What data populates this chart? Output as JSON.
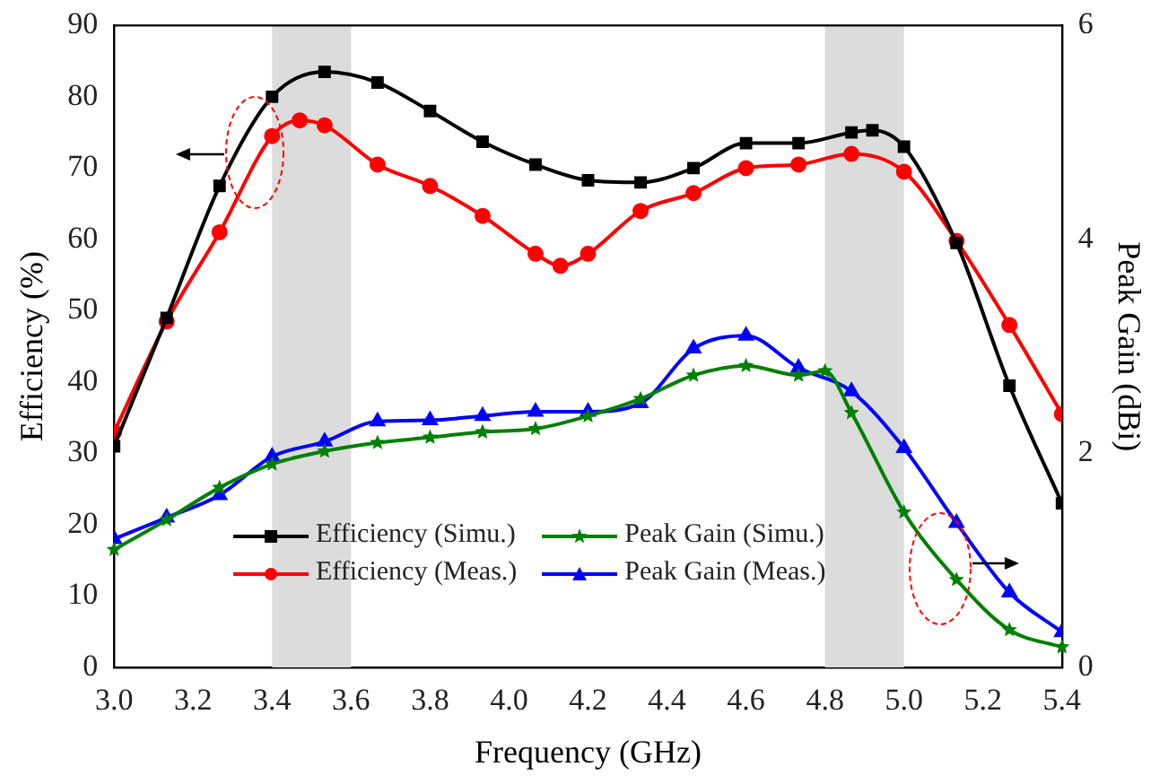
{
  "chart_data": {
    "type": "line",
    "xlabel": "Frequency (GHz)",
    "ylabel": "Efficiency (%)",
    "y2label": "Peak Gain (dBi)",
    "xlim": [
      3.0,
      5.4
    ],
    "xticks": [
      {
        "value": 3.0,
        "label": "3.0"
      },
      {
        "value": 3.2,
        "label": "3.2"
      },
      {
        "value": 3.4,
        "label": "3.4"
      },
      {
        "value": 3.6,
        "label": "3.6"
      },
      {
        "value": 3.8,
        "label": "3.8"
      },
      {
        "value": 4.0,
        "label": "4.0"
      },
      {
        "value": 4.2,
        "label": "4.2"
      },
      {
        "value": 4.4,
        "label": "4.4"
      },
      {
        "value": 4.6,
        "label": "4.6"
      },
      {
        "value": 4.8,
        "label": "4.8"
      },
      {
        "value": 5.0,
        "label": "5.0"
      },
      {
        "value": 5.2,
        "label": "5.2"
      },
      {
        "value": 5.4,
        "label": "5.4"
      }
    ],
    "ylim": [
      0,
      90
    ],
    "yticks": [
      0,
      10,
      20,
      30,
      40,
      50,
      60,
      70,
      80,
      90
    ],
    "y2lim": [
      0,
      6
    ],
    "y2ticks": [
      0,
      2,
      4,
      6
    ],
    "grid": false,
    "legend": "bottom",
    "line_style": "solid",
    "bands": [
      {
        "axis": "x",
        "from": 3.4,
        "to": 3.6,
        "color": "#dcdcdc"
      },
      {
        "axis": "x",
        "from": 4.8,
        "to": 5.0,
        "color": "#dcdcdc"
      }
    ],
    "series": [
      {
        "name": "Efficiency (Simu.)",
        "color": "#000000",
        "marker": "square",
        "x": [
          3.0,
          3.133,
          3.267,
          3.4,
          3.533,
          3.667,
          3.8,
          3.933,
          4.067,
          4.2,
          4.333,
          4.467,
          4.6,
          4.733,
          4.867,
          4.92,
          5.0,
          5.133,
          5.267,
          5.4
        ],
        "values": [
          31,
          49,
          67.5,
          80,
          83.5,
          82,
          78,
          73.7,
          70.5,
          68.3,
          68,
          70,
          73.5,
          73.5,
          75,
          75.3,
          73,
          59.5,
          39.5,
          23
        ]
      },
      {
        "name": "Efficiency (Meas.)",
        "color": "#ff0000",
        "marker": "circle",
        "x": [
          3.0,
          3.133,
          3.267,
          3.4,
          3.47,
          3.533,
          3.667,
          3.8,
          3.933,
          4.067,
          4.13,
          4.2,
          4.333,
          4.467,
          4.6,
          4.733,
          4.867,
          5.0,
          5.133,
          5.267,
          5.4
        ],
        "values": [
          33,
          48.5,
          61,
          74.5,
          76.7,
          76,
          70.5,
          67.5,
          63.3,
          58,
          56.3,
          58,
          64,
          66.5,
          70,
          70.5,
          72,
          69.5,
          59.8,
          48,
          35.5
        ]
      },
      {
        "name": "Peak Gain (Simu.)",
        "color": "#008000",
        "marker": "star",
        "axis": "y2",
        "x": [
          3.0,
          3.133,
          3.267,
          3.4,
          3.533,
          3.667,
          3.8,
          3.933,
          4.067,
          4.2,
          4.333,
          4.467,
          4.6,
          4.733,
          4.8,
          4.867,
          5.0,
          5.133,
          5.267,
          5.4
        ],
        "values": [
          1.1,
          1.38,
          1.68,
          1.9,
          2.02,
          2.1,
          2.15,
          2.2,
          2.23,
          2.35,
          2.51,
          2.73,
          2.82,
          2.73,
          2.77,
          2.38,
          1.45,
          0.82,
          0.35,
          0.19
        ]
      },
      {
        "name": "Peak Gain (Meas.)",
        "color": "#0000ff",
        "marker": "triangle",
        "axis": "y2",
        "x": [
          3.0,
          3.133,
          3.267,
          3.4,
          3.533,
          3.667,
          3.8,
          3.933,
          4.067,
          4.2,
          4.333,
          4.467,
          4.6,
          4.733,
          4.867,
          5.0,
          5.133,
          5.267,
          5.4
        ],
        "values": [
          1.2,
          1.4,
          1.61,
          1.97,
          2.11,
          2.3,
          2.31,
          2.35,
          2.39,
          2.39,
          2.47,
          2.98,
          3.1,
          2.8,
          2.58,
          2.05,
          1.35,
          0.7,
          0.33
        ]
      }
    ]
  }
}
